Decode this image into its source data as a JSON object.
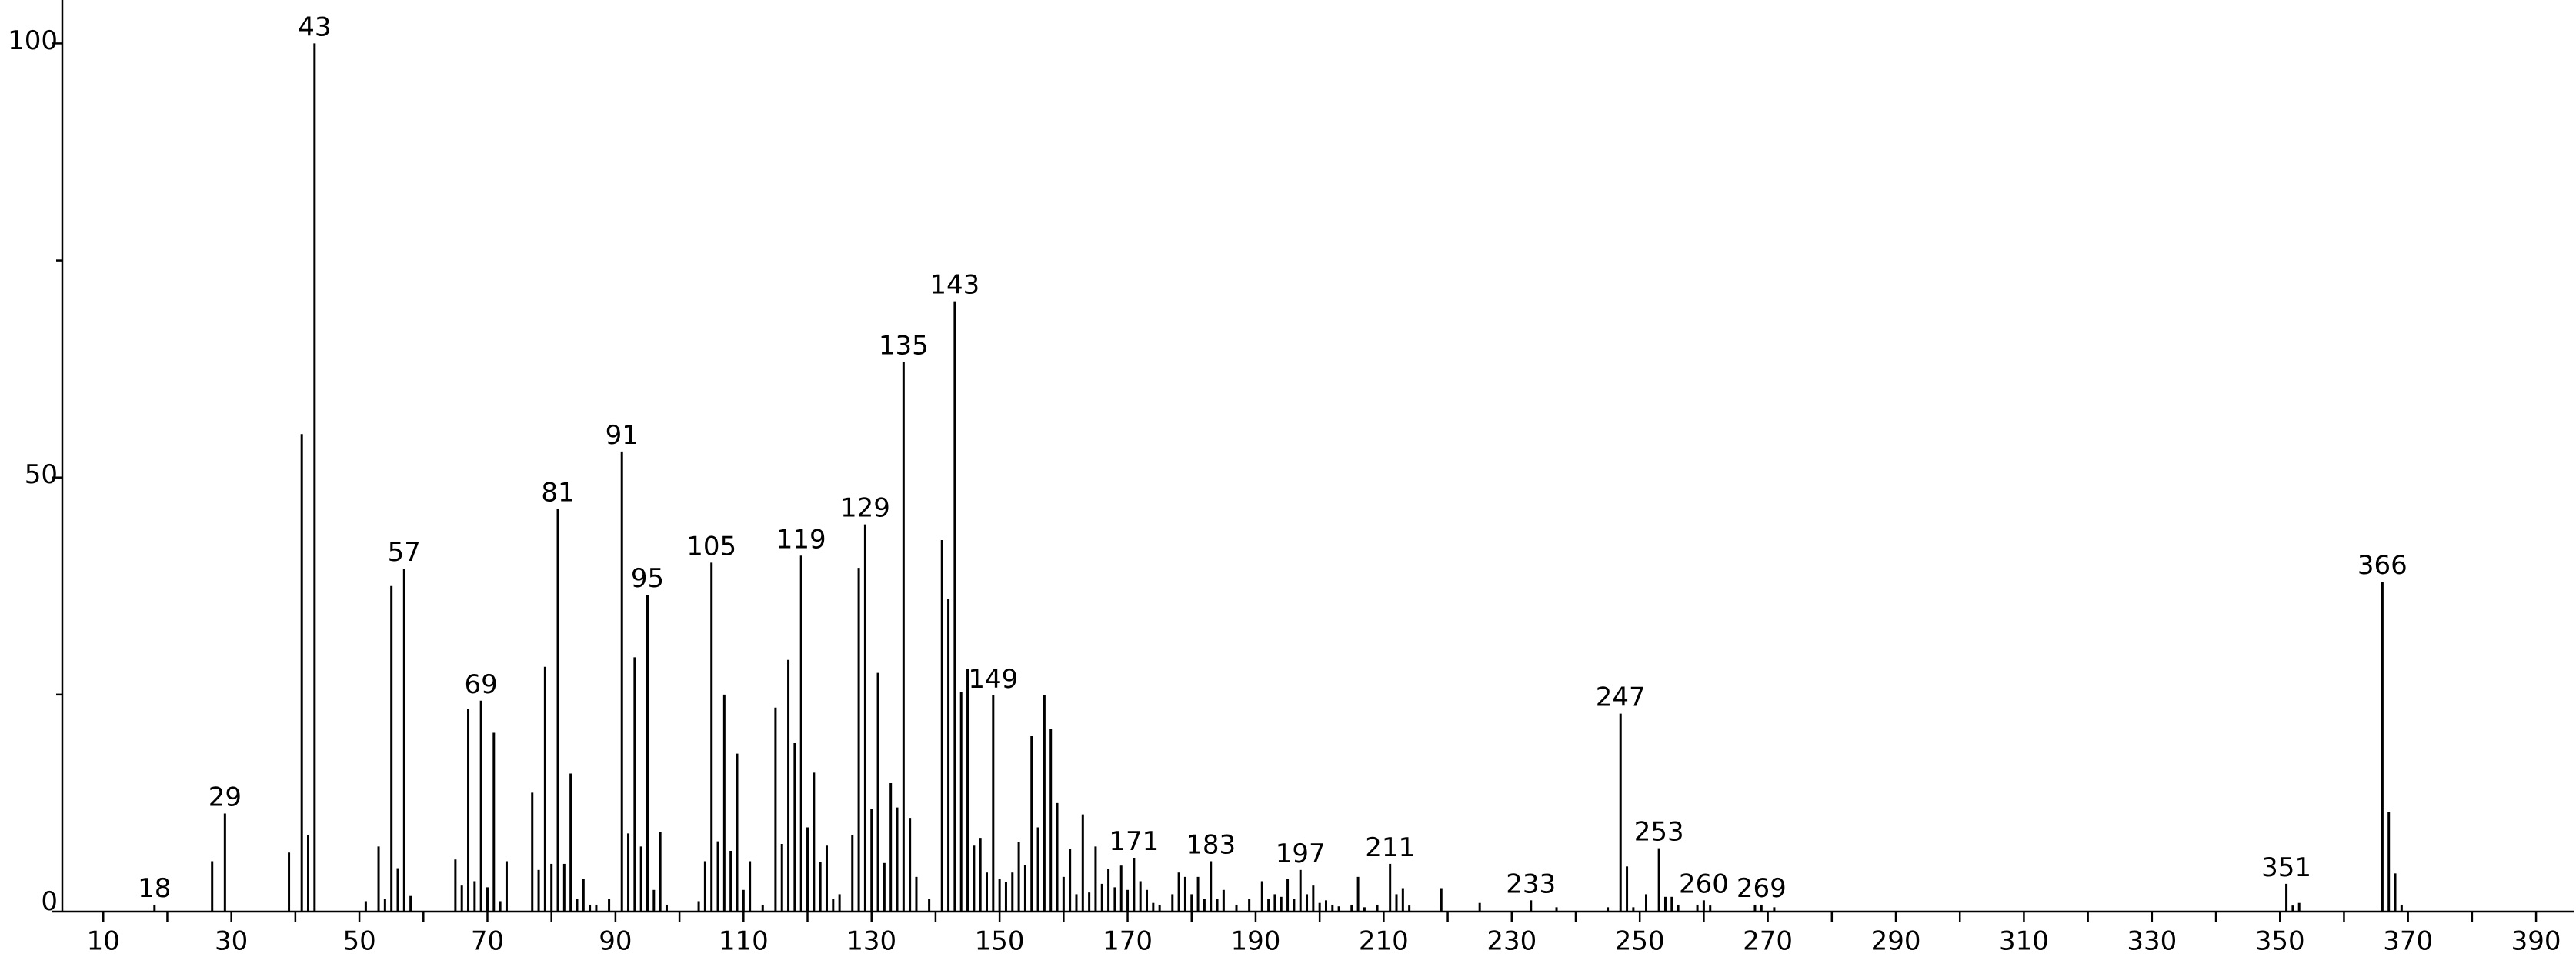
{
  "chart_data": {
    "type": "stem",
    "color": "#000000",
    "x": [
      18,
      27,
      29,
      39,
      41,
      42,
      43,
      51,
      53,
      54,
      55,
      56,
      57,
      58,
      65,
      66,
      67,
      68,
      69,
      70,
      71,
      72,
      73,
      77,
      78,
      79,
      80,
      81,
      82,
      83,
      84,
      85,
      86,
      87,
      89,
      91,
      92,
      93,
      94,
      95,
      96,
      97,
      98,
      103,
      104,
      105,
      106,
      107,
      108,
      109,
      110,
      111,
      113,
      115,
      116,
      117,
      118,
      119,
      120,
      121,
      122,
      123,
      124,
      125,
      127,
      128,
      129,
      130,
      131,
      132,
      133,
      134,
      135,
      136,
      137,
      139,
      141,
      142,
      143,
      144,
      145,
      146,
      147,
      148,
      149,
      150,
      151,
      152,
      153,
      154,
      155,
      156,
      157,
      158,
      159,
      160,
      161,
      162,
      163,
      164,
      165,
      166,
      167,
      168,
      169,
      170,
      171,
      172,
      173,
      174,
      175,
      177,
      178,
      179,
      180,
      181,
      182,
      183,
      184,
      185,
      187,
      189,
      191,
      192,
      193,
      194,
      195,
      196,
      197,
      198,
      199,
      200,
      201,
      202,
      203,
      205,
      206,
      207,
      209,
      211,
      212,
      213,
      214,
      219,
      225,
      233,
      237,
      245,
      247,
      248,
      249,
      251,
      253,
      254,
      255,
      256,
      259,
      260,
      261,
      268,
      269,
      271,
      351,
      352,
      353,
      366,
      367,
      368,
      369
    ],
    "values": [
      0.8,
      5.8,
      11.3,
      6.8,
      55,
      8.8,
      100,
      1.2,
      7.5,
      1.5,
      37.5,
      5,
      39.5,
      1.8,
      6,
      3,
      23.3,
      3.5,
      24.3,
      2.8,
      20.6,
      1.2,
      5.8,
      13.7,
      4.8,
      28.2,
      5.5,
      46.4,
      5.5,
      15.9,
      1.5,
      3.8,
      0.8,
      0.8,
      1.5,
      53,
      9,
      29.3,
      7.5,
      36.5,
      2.5,
      9.2,
      0.8,
      1.2,
      5.8,
      40.2,
      8.1,
      25,
      7,
      18.2,
      2.5,
      5.8,
      0.8,
      23.5,
      7.8,
      29,
      19.4,
      41,
      9.7,
      16,
      5.7,
      7.6,
      1.5,
      2,
      8.8,
      39.6,
      44.6,
      11.8,
      27.5,
      5.6,
      14.8,
      12,
      63.3,
      10.8,
      4,
      1.5,
      42.8,
      36,
      70.3,
      25.3,
      28,
      7.6,
      8.5,
      4.5,
      24.9,
      3.8,
      3.4,
      4.5,
      8,
      5.4,
      20.2,
      9.7,
      24.9,
      21,
      12.5,
      4,
      7.2,
      2,
      11.2,
      2.2,
      7.5,
      3.2,
      4.9,
      2.8,
      5.3,
      2.5,
      6.2,
      3.5,
      2.5,
      1,
      0.8,
      2,
      4.5,
      4,
      2,
      4,
      1.5,
      5.8,
      1.5,
      2.5,
      0.8,
      1.5,
      3.5,
      1.5,
      2,
      1.7,
      3.8,
      1.5,
      4.8,
      2,
      3,
      1,
      1.3,
      0.8,
      0.6,
      0.8,
      4,
      0.5,
      0.8,
      5.5,
      2,
      2.7,
      0.7,
      2.7,
      1,
      1.3,
      0.5,
      0.5,
      22.8,
      5.2,
      0.5,
      2,
      7.3,
      1.7,
      1.7,
      0.8,
      0.8,
      1.3,
      0.7,
      0.8,
      0.8,
      0.5,
      3.2,
      0.7,
      1,
      38,
      11.5,
      4.4,
      0.8
    ],
    "x_labels": [
      18,
      null,
      29,
      null,
      null,
      null,
      43,
      null,
      null,
      null,
      null,
      null,
      57,
      null,
      null,
      null,
      null,
      null,
      69,
      null,
      null,
      null,
      null,
      null,
      null,
      null,
      null,
      81,
      null,
      null,
      null,
      null,
      null,
      null,
      null,
      91,
      null,
      null,
      null,
      95,
      null,
      null,
      null,
      null,
      null,
      105,
      null,
      null,
      null,
      null,
      null,
      null,
      null,
      null,
      null,
      null,
      null,
      119,
      null,
      null,
      null,
      null,
      null,
      null,
      null,
      null,
      129,
      null,
      null,
      null,
      null,
      null,
      135,
      null,
      null,
      null,
      null,
      null,
      143,
      null,
      null,
      null,
      null,
      null,
      149,
      null,
      null,
      null,
      null,
      null,
      null,
      null,
      null,
      null,
      null,
      null,
      null,
      null,
      null,
      null,
      null,
      null,
      null,
      null,
      null,
      null,
      171,
      null,
      null,
      null,
      null,
      null,
      null,
      null,
      null,
      null,
      null,
      183,
      null,
      null,
      null,
      null,
      null,
      null,
      null,
      null,
      null,
      null,
      197,
      null,
      null,
      null,
      null,
      null,
      null,
      null,
      null,
      null,
      null,
      211,
      null,
      null,
      null,
      null,
      null,
      233,
      null,
      null,
      247,
      null,
      null,
      null,
      253,
      null,
      null,
      null,
      null,
      260,
      null,
      null,
      269,
      null,
      351,
      null,
      null,
      366,
      null,
      null,
      null
    ],
    "xlim": [
      3.6,
      396
    ],
    "xticks": [
      10,
      30,
      50,
      70,
      90,
      110,
      130,
      150,
      170,
      190,
      210,
      230,
      250,
      270,
      290,
      310,
      330,
      350,
      370,
      390
    ],
    "xminorticks": [
      20,
      40,
      60,
      80,
      100,
      120,
      140,
      160,
      180,
      200,
      220,
      240,
      260,
      280,
      300,
      320,
      340,
      360,
      380
    ],
    "ylim": [
      0,
      105
    ],
    "yticks": [
      0,
      50,
      100
    ],
    "yminorticks": [
      25,
      75
    ]
  }
}
